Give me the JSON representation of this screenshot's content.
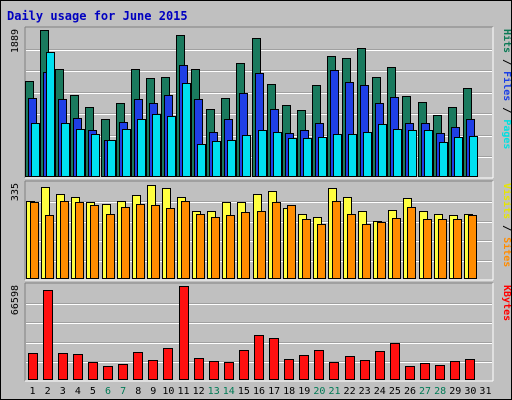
{
  "chart_data": {
    "type": "bar",
    "title": "Daily usage for June 2015",
    "categories": [
      "1",
      "2",
      "3",
      "4",
      "5",
      "6",
      "7",
      "8",
      "9",
      "10",
      "11",
      "12",
      "13",
      "14",
      "15",
      "16",
      "17",
      "18",
      "19",
      "20",
      "21",
      "22",
      "23",
      "24",
      "25",
      "26",
      "27",
      "28",
      "29",
      "30",
      "31"
    ],
    "weekend_days": [
      "6",
      "7",
      "13",
      "14",
      "20",
      "21",
      "27",
      "28"
    ],
    "panels": [
      {
        "id": "pages_files_hits",
        "max_label": "1889",
        "ymax": 1889,
        "right_labels": [
          {
            "text": "Pages",
            "color": "#00e0e0"
          },
          {
            "text": " / ",
            "color": "#000000"
          },
          {
            "text": "Files",
            "color": "#1a3fe6"
          },
          {
            "text": " / ",
            "color": "#000000"
          },
          {
            "text": "Hits",
            "color": "#0b7a55"
          }
        ],
        "series": [
          {
            "name": "Hits",
            "color": "#1a7a5e",
            "values": [
              1240,
              1889,
              1390,
              1050,
              900,
              740,
              950,
              1390,
              1270,
              1280,
              1830,
              1390,
              880,
              1010,
              1470,
              1780,
              1200,
              920,
              860,
              1180,
              1560,
              1530,
              1660,
              1280,
              1410,
              1040,
              960,
              800,
              900,
              1140,
              0
            ]
          },
          {
            "name": "Files",
            "color": "#1f3fe6",
            "values": [
              1020,
              1350,
              1000,
              760,
              610,
              470,
              710,
              1000,
              950,
              1060,
              1440,
              1000,
              580,
              740,
              1080,
              1340,
              880,
              560,
              600,
              700,
              1380,
              1220,
              1180,
              950,
              1030,
              690,
              700,
              560,
              640,
              750,
              0
            ]
          },
          {
            "name": "Pages",
            "color": "#00e0f0",
            "values": [
              700,
              1610,
              690,
              620,
              550,
              470,
              620,
              740,
              810,
              790,
              1210,
              430,
              460,
              480,
              540,
              600,
              580,
              500,
              500,
              520,
              550,
              550,
              580,
              680,
              620,
              610,
              600,
              450,
              520,
              530,
              0
            ]
          }
        ]
      },
      {
        "id": "visits_sites",
        "max_label": "335",
        "ymax": 335,
        "right_labels": [
          {
            "text": "Sites",
            "color": "#ff8c00"
          },
          {
            "text": " / ",
            "color": "#000000"
          },
          {
            "text": "Visits",
            "color": "#e6e600"
          }
        ],
        "series": [
          {
            "name": "Visits",
            "color": "#ffff40",
            "values": [
              275,
              323,
              300,
              290,
              270,
              265,
              275,
              295,
              330,
              320,
              290,
              240,
              240,
              270,
              270,
              298,
              310,
              250,
              230,
              220,
              320,
              290,
              240,
              205,
              245,
              285,
              240,
              230,
              225,
              230,
              0
            ]
          },
          {
            "name": "Sites",
            "color": "#ff8c00",
            "values": [
              270,
              225,
              275,
              270,
              260,
              230,
              255,
              265,
              260,
              250,
              275,
              230,
              220,
              225,
              235,
              240,
              270,
              260,
              210,
              195,
              275,
              230,
              195,
              200,
              215,
              255,
              210,
              210,
              210,
              225,
              0
            ]
          }
        ]
      },
      {
        "id": "kbytes",
        "max_label": "66598",
        "ymax": 66598,
        "right_labels": [
          {
            "text": "KBytes",
            "color": "#ff0000"
          }
        ],
        "series": [
          {
            "name": "KBytes",
            "color": "#ff1010",
            "values": [
              19000,
              64000,
              19000,
              18500,
              12900,
              9900,
              11500,
              19500,
              14400,
              22900,
              66598,
              15300,
              13400,
              12900,
              21000,
              31600,
              30000,
              15200,
              17700,
              21400,
              12900,
              17000,
              14400,
              20700,
              26300,
              9900,
              11700,
              10700,
              13400,
              15000,
              0
            ]
          }
        ]
      }
    ]
  }
}
